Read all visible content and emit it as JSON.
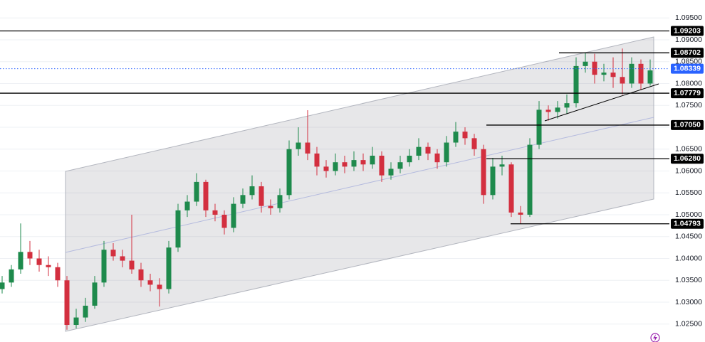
{
  "chart_data": {
    "type": "candlestick",
    "up_color": "#1e8a4c",
    "down_color": "#d32f3f",
    "grid": true,
    "ylim": [
      1.0209,
      1.0991
    ],
    "yticks": [
      {
        "value": 1.025,
        "label": "1.02500"
      },
      {
        "value": 1.03,
        "label": "1.03000"
      },
      {
        "value": 1.035,
        "label": "1.03500"
      },
      {
        "value": 1.04,
        "label": "1.04000"
      },
      {
        "value": 1.045,
        "label": "1.04500"
      },
      {
        "value": 1.05,
        "label": "1.05000"
      },
      {
        "value": 1.055,
        "label": "1.05500"
      },
      {
        "value": 1.06,
        "label": "1.06000"
      },
      {
        "value": 1.065,
        "label": "1.06500"
      },
      {
        "value": 1.07,
        "label": "1.07000"
      },
      {
        "value": 1.075,
        "label": "1.07500"
      },
      {
        "value": 1.08,
        "label": "1.08000"
      },
      {
        "value": 1.085,
        "label": "1.08500"
      },
      {
        "value": 1.09,
        "label": "1.09000"
      },
      {
        "value": 1.095,
        "label": "1.09500"
      }
    ],
    "levels": [
      1.09203,
      1.08702,
      1.07779,
      {
        "value": 1.0705,
        "label": "1.07050"
      },
      {
        "value": 1.0628,
        "label": "1.06280"
      },
      1.04793
    ],
    "level_color": "#000000",
    "current_price": 1.08339,
    "current_price_color": "#2962ff",
    "candles": [
      [
        1.033,
        1.036,
        1.032,
        1.0345
      ],
      [
        1.0345,
        1.0385,
        1.0335,
        1.0375
      ],
      [
        1.0375,
        1.048,
        1.0365,
        1.0415
      ],
      [
        1.0415,
        1.044,
        1.0385,
        1.04
      ],
      [
        1.04,
        1.042,
        1.037,
        1.0385
      ],
      [
        1.0385,
        1.0405,
        1.036,
        1.038
      ],
      [
        1.038,
        1.039,
        1.0335,
        1.035
      ],
      [
        1.035,
        1.036,
        1.0237,
        1.0248
      ],
      [
        1.0248,
        1.0285,
        1.024,
        1.0265
      ],
      [
        1.0265,
        1.031,
        1.0255,
        1.0292
      ],
      [
        1.0292,
        1.036,
        1.0285,
        1.0345
      ],
      [
        1.0345,
        1.044,
        1.0335,
        1.042
      ],
      [
        1.042,
        1.0435,
        1.0395,
        1.0405
      ],
      [
        1.0405,
        1.042,
        1.038,
        1.0395
      ],
      [
        1.0395,
        1.05,
        1.0365,
        1.0375
      ],
      [
        1.0375,
        1.039,
        1.0335,
        1.035
      ],
      [
        1.035,
        1.0365,
        1.0325,
        1.034
      ],
      [
        1.034,
        1.0355,
        1.029,
        1.033
      ],
      [
        1.033,
        1.044,
        1.032,
        1.0425
      ],
      [
        1.0425,
        1.0525,
        1.0415,
        1.051
      ],
      [
        1.051,
        1.0545,
        1.0495,
        1.053
      ],
      [
        1.053,
        1.0595,
        1.052,
        1.0575
      ],
      [
        1.0575,
        1.058,
        1.0495,
        1.051
      ],
      [
        1.051,
        1.0525,
        1.0485,
        1.05
      ],
      [
        1.05,
        1.051,
        1.0455,
        1.047
      ],
      [
        1.047,
        1.054,
        1.046,
        1.0525
      ],
      [
        1.0525,
        1.056,
        1.0515,
        1.0545
      ],
      [
        1.0545,
        1.059,
        1.0535,
        1.0565
      ],
      [
        1.0565,
        1.0575,
        1.0505,
        1.052
      ],
      [
        1.052,
        1.0535,
        1.05,
        1.0515
      ],
      [
        1.0515,
        1.056,
        1.0505,
        1.0545
      ],
      [
        1.0545,
        1.067,
        1.0535,
        1.065
      ],
      [
        1.065,
        1.07,
        1.0635,
        1.0665
      ],
      [
        1.0665,
        1.0739,
        1.0625,
        1.064
      ],
      [
        1.064,
        1.0655,
        1.059,
        1.061
      ],
      [
        1.061,
        1.0625,
        1.0585,
        1.06
      ],
      [
        1.06,
        1.064,
        1.059,
        1.062
      ],
      [
        1.062,
        1.0635,
        1.0595,
        1.061
      ],
      [
        1.061,
        1.0645,
        1.06,
        1.0625
      ],
      [
        1.0625,
        1.064,
        1.06,
        1.0615
      ],
      [
        1.0615,
        1.0655,
        1.0605,
        1.0635
      ],
      [
        1.0635,
        1.0645,
        1.0575,
        1.059
      ],
      [
        1.059,
        1.062,
        1.058,
        1.0605
      ],
      [
        1.0605,
        1.0635,
        1.0595,
        1.062
      ],
      [
        1.062,
        1.065,
        1.061,
        1.0635
      ],
      [
        1.0635,
        1.0675,
        1.0625,
        1.0655
      ],
      [
        1.0655,
        1.0665,
        1.0625,
        1.064
      ],
      [
        1.064,
        1.065,
        1.0605,
        1.062
      ],
      [
        1.062,
        1.068,
        1.061,
        1.0665
      ],
      [
        1.0665,
        1.0712,
        1.0655,
        1.069
      ],
      [
        1.069,
        1.07,
        1.066,
        1.0675
      ],
      [
        1.0675,
        1.0685,
        1.0635,
        1.065
      ],
      [
        1.065,
        1.066,
        1.0525,
        1.0545
      ],
      [
        1.0545,
        1.063,
        1.0535,
        1.061
      ],
      [
        1.061,
        1.0635,
        1.059,
        1.0615
      ],
      [
        1.0615,
        1.062,
        1.0495,
        1.0505
      ],
      [
        1.0505,
        1.052,
        1.0479,
        1.05
      ],
      [
        1.05,
        1.0675,
        1.0495,
        1.066
      ],
      [
        1.066,
        1.076,
        1.065,
        1.074
      ],
      [
        1.074,
        1.075,
        1.0715,
        1.0735
      ],
      [
        1.0735,
        1.076,
        1.072,
        1.0745
      ],
      [
        1.0745,
        1.0775,
        1.073,
        1.0755
      ],
      [
        1.0755,
        1.086,
        1.0745,
        1.084
      ],
      [
        1.084,
        1.087,
        1.0825,
        1.085
      ],
      [
        1.085,
        1.0868,
        1.08,
        1.082
      ],
      [
        1.082,
        1.0845,
        1.0805,
        1.0825
      ],
      [
        1.0825,
        1.086,
        1.079,
        1.0815
      ],
      [
        1.0815,
        1.088,
        1.0775,
        1.08
      ],
      [
        1.08,
        1.086,
        1.079,
        1.0845
      ],
      [
        1.0845,
        1.0855,
        1.0785,
        1.08
      ],
      [
        1.08,
        1.0855,
        1.0795,
        1.083
      ]
    ]
  }
}
